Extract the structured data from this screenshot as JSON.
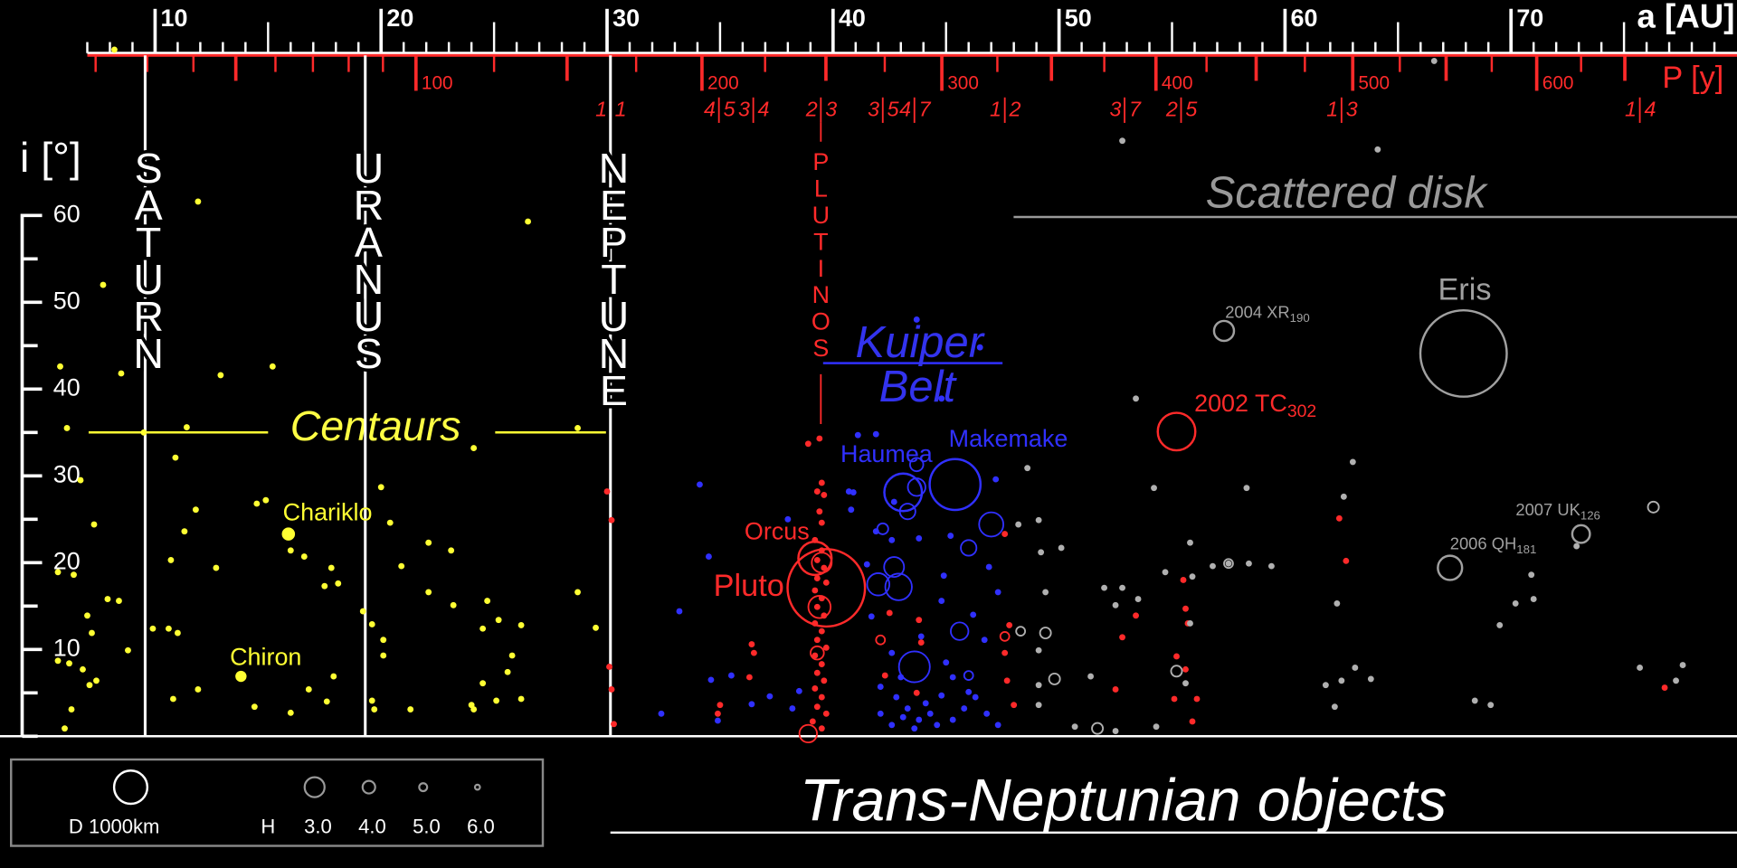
{
  "chart_data": {
    "type": "scatter",
    "title": "Trans-Neptunian objects",
    "x_label": "a [AU]",
    "x2_label": "P [y]",
    "y_label": "i [°]",
    "xlim": [
      4,
      80
    ],
    "ylim": [
      0,
      80
    ],
    "xticks": [
      10,
      20,
      30,
      40,
      50,
      60,
      70
    ],
    "xticks_minor": [
      7,
      8,
      9,
      11,
      12,
      13,
      14,
      15,
      16,
      17,
      18,
      19,
      21,
      22,
      23,
      24,
      25,
      26,
      27,
      28,
      29,
      31,
      32,
      33,
      34,
      35,
      36,
      37,
      38,
      39,
      41,
      42,
      43,
      44,
      45,
      46,
      47,
      48,
      49,
      51,
      52,
      53,
      54,
      55,
      56,
      57,
      58,
      59,
      61,
      62,
      63,
      64,
      65,
      66,
      67,
      68,
      69,
      71,
      72,
      73,
      74,
      75,
      76,
      77,
      78,
      79
    ],
    "x2ticks": [
      100,
      200,
      300,
      400,
      500,
      600
    ],
    "x2ticks_minor": [
      20,
      30,
      40,
      50,
      60,
      70,
      80,
      90,
      125,
      150,
      175,
      225,
      250,
      275,
      325,
      350,
      375,
      425,
      450,
      475,
      525,
      550,
      575,
      625,
      650
    ],
    "yticks": [
      10,
      20,
      30,
      40,
      50,
      60
    ],
    "yticks_minor": [
      0,
      5,
      15,
      25,
      35,
      45,
      55
    ],
    "resonances": [
      {
        "a": 30.15,
        "n": 1,
        "d": 1
      },
      {
        "a": 34.95,
        "n": 4,
        "d": 5
      },
      {
        "a": 36.47,
        "n": 3,
        "d": 4
      },
      {
        "a": 39.46,
        "n": 2,
        "d": 3
      },
      {
        "a": 42.2,
        "n": 3,
        "d": 5
      },
      {
        "a": 43.6,
        "n": 4,
        "d": 7
      },
      {
        "a": 47.6,
        "n": 1,
        "d": 2
      },
      {
        "a": 52.9,
        "n": 3,
        "d": 7
      },
      {
        "a": 55.4,
        "n": 2,
        "d": 5
      },
      {
        "a": 62.5,
        "n": 1,
        "d": 3
      },
      {
        "a": 75.7,
        "n": 1,
        "d": 4
      }
    ],
    "planets": [
      {
        "name": "SATURN",
        "a": 9.56
      },
      {
        "name": "URANUS",
        "a": 19.3
      },
      {
        "name": "NEPTUNE",
        "a": 30.15
      }
    ],
    "regions": {
      "centaurs": {
        "label": "Centaurs",
        "i": 35
      },
      "plutinos": "PLUTINOS",
      "kuiper": [
        "Kuiper",
        "Belt"
      ],
      "scattered": "Scattered disk"
    },
    "series": [
      {
        "color": "#ffff33",
        "marker": "dot",
        "x": [
          8.2,
          11.9,
          26.5,
          7.7,
          5.8,
          8.5,
          12.9,
          15.2,
          6.1,
          11.4,
          9.5,
          28.7,
          24.1,
          10.9,
          6.7,
          20.0,
          14.9,
          14.5,
          11.8,
          7.3,
          20.4,
          11.3,
          22.1,
          23.1,
          16.0,
          16.6,
          10.7,
          12.7,
          17.8,
          20.9,
          5.7,
          6.4,
          18.1,
          17.5,
          28.7,
          22.1,
          7.9,
          8.4,
          24.7,
          23.2,
          19.2,
          7.0,
          25.2,
          9.9,
          10.6,
          11.0,
          19.6,
          24.5,
          26.2,
          29.5,
          7.2,
          20.1,
          8.8,
          20.1,
          25.8,
          5.7,
          6.2,
          6.8,
          25.6,
          7.4,
          7.1,
          17.9,
          24.5,
          11.9,
          16.8,
          10.8,
          17.6,
          19.6,
          25.1,
          26.2,
          24.0,
          6.3,
          14.4,
          16.0,
          19.7,
          21.3,
          24.1,
          6.0
        ],
        "values": [
          79.1,
          61.6,
          59.3,
          52.0,
          42.6,
          41.8,
          41.6,
          42.6,
          35.5,
          35.6,
          35.0,
          35.5,
          33.2,
          32.1,
          29.5,
          28.7,
          27.2,
          26.8,
          26.1,
          24.4,
          24.6,
          23.6,
          22.3,
          21.4,
          21.4,
          20.7,
          20.3,
          19.4,
          19.4,
          19.6,
          18.9,
          18.6,
          17.6,
          17.3,
          16.6,
          16.6,
          15.8,
          15.6,
          15.6,
          15.1,
          14.4,
          13.9,
          13.4,
          12.4,
          12.4,
          11.9,
          12.9,
          12.4,
          12.8,
          12.5,
          11.9,
          11.1,
          9.9,
          9.3,
          9.3,
          8.7,
          8.4,
          7.7,
          7.4,
          6.4,
          5.9,
          6.9,
          6.1,
          5.4,
          5.4,
          4.3,
          4.0,
          4.1,
          4.1,
          4.3,
          3.6,
          3.1,
          3.4,
          2.7,
          3.1,
          3.1,
          3.1,
          0.9
        ]
      },
      {
        "color": "#ff2a2a",
        "marker": "dot",
        "x": [
          30.0,
          30.2,
          30.1,
          30.2,
          30.3,
          39.4,
          38.9,
          39.5,
          39.3,
          39.6,
          39.4,
          39.5,
          39.2,
          39.5,
          39.3,
          39.6,
          39.3,
          39.7,
          39.2,
          39.5,
          39.3,
          39.6,
          39.2,
          39.5,
          39.3,
          39.7,
          39.2,
          39.5,
          39.3,
          39.6,
          39.2,
          39.5,
          39.3,
          39.7,
          39.1,
          39.5,
          36.4,
          36.5,
          35.0,
          34.9,
          36.3,
          42.3,
          42.5,
          43.8,
          43.9,
          43.7,
          47.6,
          47.8,
          47.6,
          47.7,
          48.0,
          52.8,
          52.5,
          53.4,
          55.5,
          55.6,
          55.7,
          55.2,
          55.6,
          55.1,
          56.1,
          55.9,
          62.4,
          62.7,
          76.8
        ],
        "values": [
          28.2,
          24.9,
          8.0,
          5.4,
          1.4,
          34.3,
          33.7,
          29.2,
          28.2,
          27.8,
          25.9,
          24.6,
          22.6,
          21.4,
          20.3,
          19.4,
          18.2,
          17.7,
          16.8,
          15.9,
          14.9,
          13.9,
          13.0,
          12.1,
          11.1,
          10.2,
          9.3,
          8.3,
          7.3,
          6.4,
          5.5,
          4.5,
          3.4,
          2.6,
          1.7,
          0.9,
          10.6,
          9.6,
          3.6,
          2.6,
          6.8,
          7.0,
          14.2,
          13.4,
          10.8,
          5.0,
          23.3,
          12.8,
          9.6,
          6.4,
          3.6,
          11.4,
          5.4,
          13.9,
          18.0,
          14.7,
          13.0,
          9.2,
          7.7,
          4.3,
          4.3,
          1.7,
          25.1,
          20.2,
          5.6
        ]
      },
      {
        "color": "#3030ff",
        "marker": "dot",
        "x": [
          43.7,
          46.5,
          44.8,
          41.9,
          41.1,
          34.1,
          40.7,
          40.9,
          47.2,
          42.7,
          40.8,
          38.0,
          41.9,
          42.6,
          43.8,
          45.2,
          34.5,
          41.5,
          46.9,
          44.9,
          47.3,
          33.2,
          44.8,
          41.7,
          46.2,
          46.7,
          43.9,
          42.6,
          45.0,
          34.6,
          35.5,
          37.2,
          36.4,
          38.5,
          38.2,
          32.4,
          34.9,
          42.1,
          42.8,
          43.3,
          43.8,
          44.3,
          42.6,
          43.1,
          43.6,
          44.1,
          44.6,
          44.8,
          45.3,
          45.8,
          46.3,
          46.8,
          47.3,
          42.1,
          43.0,
          45.3,
          46.0
        ],
        "values": [
          48.0,
          44.8,
          38.9,
          34.8,
          34.7,
          29.0,
          28.2,
          28.1,
          29.6,
          27.0,
          26.1,
          25.0,
          23.6,
          22.6,
          22.8,
          23.1,
          20.7,
          19.8,
          19.5,
          18.5,
          16.6,
          14.4,
          15.6,
          13.8,
          14.0,
          11.1,
          11.5,
          9.6,
          8.5,
          6.5,
          7.0,
          4.6,
          3.7,
          5.2,
          3.2,
          2.6,
          1.8,
          5.7,
          4.5,
          3.2,
          1.9,
          2.6,
          1.3,
          2.2,
          0.9,
          3.8,
          1.3,
          4.7,
          1.9,
          3.2,
          4.5,
          2.6,
          1.3,
          2.6,
          6.8,
          6.8,
          5.1
        ]
      },
      {
        "color": "#b0b0b0",
        "marker": "dot",
        "x": [
          52.8,
          64.1,
          66.6,
          53.4,
          54.2,
          58.3,
          63.0,
          48.6,
          62.6,
          48.2,
          49.1,
          55.8,
          49.2,
          50.1,
          56.8,
          57.5,
          58.4,
          59.4,
          54.7,
          55.9,
          52.0,
          52.8,
          53.5,
          52.5,
          70.9,
          71.0,
          70.2,
          69.5,
          62.3,
          55.8,
          49.4,
          49.1,
          51.4,
          63.1,
          63.8,
          62.5,
          61.8,
          62.2,
          75.7,
          77.6,
          77.3,
          68.4,
          69.1,
          49.1,
          49.1,
          50.7,
          54.3,
          52.5,
          72.9,
          55.6
        ],
        "values": [
          68.6,
          67.6,
          77.8,
          38.9,
          28.6,
          28.6,
          31.6,
          30.9,
          27.6,
          24.4,
          24.9,
          22.3,
          21.2,
          21.7,
          19.6,
          19.9,
          19.9,
          19.6,
          18.9,
          18.4,
          17.1,
          17.1,
          15.8,
          15.1,
          18.6,
          15.8,
          15.3,
          12.8,
          15.3,
          13.0,
          16.6,
          9.9,
          6.9,
          7.9,
          6.6,
          6.4,
          5.9,
          3.4,
          7.9,
          8.2,
          6.4,
          4.1,
          3.6,
          5.9,
          3.6,
          1.1,
          1.1,
          0.6,
          21.9,
          6.1
        ]
      },
      {
        "color": "#3030ff",
        "marker": "open",
        "x": [
          43.7,
          42.2,
          42.7,
          42.0,
          42.9,
          46.0,
          45.6,
          43.6,
          47.0,
          43.3,
          43.7,
          46.0
        ],
        "values": [
          31.3,
          23.9,
          19.5,
          17.5,
          17.2,
          21.7,
          12.1,
          8.0,
          24.4,
          25.9,
          28.7,
          7.0
        ],
        "sizes": [
          400,
          330,
          600,
          670,
          800,
          470,
          530,
          930,
          730,
          470,
          530,
          270
        ]
      },
      {
        "color": "#ff2a2a",
        "marker": "open",
        "x": [
          39.5,
          39.4,
          39.3,
          38.9,
          42.1,
          47.6
        ],
        "values": [
          20.0,
          14.9,
          9.6,
          0.3,
          11.1,
          11.5
        ],
        "sizes": [
          600,
          670,
          400,
          530,
          270,
          270
        ]
      },
      {
        "color": "#b0b0b0",
        "marker": "open",
        "x": [
          49.4,
          49.8,
          57.5,
          55.2,
          76.3,
          51.7,
          48.3
        ],
        "values": [
          11.9,
          6.6,
          19.9,
          7.5,
          26.4,
          0.9,
          12.1
        ],
        "sizes": [
          330,
          330,
          270,
          330,
          330,
          330,
          270
        ]
      }
    ],
    "objects": [
      {
        "label": "Pluto",
        "a": 39.7,
        "i": 17.1,
        "diameter": 2330,
        "color": "#ff2a2a"
      },
      {
        "label": "Orcus",
        "a": 39.2,
        "i": 20.5,
        "diameter": 1000,
        "color": "#ff2a2a"
      },
      {
        "label": "Haumea",
        "a": 43.1,
        "i": 28.1,
        "diameter": 1130,
        "color": "#3030ff"
      },
      {
        "label": "Makemake",
        "a": 45.4,
        "i": 29.0,
        "diameter": 1530,
        "color": "#3030ff"
      },
      {
        "label": "Eris",
        "a": 67.9,
        "i": 44.1,
        "diameter": 2600,
        "color": "#a0a0a0"
      },
      {
        "label": "2002 TC",
        "subscript": "302",
        "a": 55.2,
        "i": 35.1,
        "diameter": 1130,
        "color": "#ff2a2a"
      },
      {
        "label": "2004 XR",
        "subscript": "190",
        "a": 57.3,
        "i": 46.7,
        "diameter": 600,
        "color": "#a0a0a0"
      },
      {
        "label": "2007 UK",
        "subscript": "126",
        "a": 73.1,
        "i": 23.3,
        "diameter": 530,
        "color": "#a0a0a0"
      },
      {
        "label": "2006 QH",
        "subscript": "181",
        "a": 67.3,
        "i": 19.4,
        "diameter": 730,
        "color": "#a0a0a0"
      },
      {
        "label": "Chariklo",
        "a": 15.9,
        "i": 23.3,
        "diameter": 330,
        "color": "#ffff33",
        "filled": true
      },
      {
        "label": "Chiron",
        "a": 13.8,
        "i": 6.9,
        "diameter": 270,
        "color": "#ffff33",
        "filled": true
      }
    ],
    "legend": {
      "d_label": "D 1000km",
      "d_value": 1000,
      "h_label": "H",
      "h_values": [
        {
          "value": 3,
          "label": "3.0"
        },
        {
          "value": 4,
          "label": "4.0"
        },
        {
          "value": 5,
          "label": "5.0"
        },
        {
          "value": 6,
          "label": "6.0"
        }
      ]
    }
  }
}
